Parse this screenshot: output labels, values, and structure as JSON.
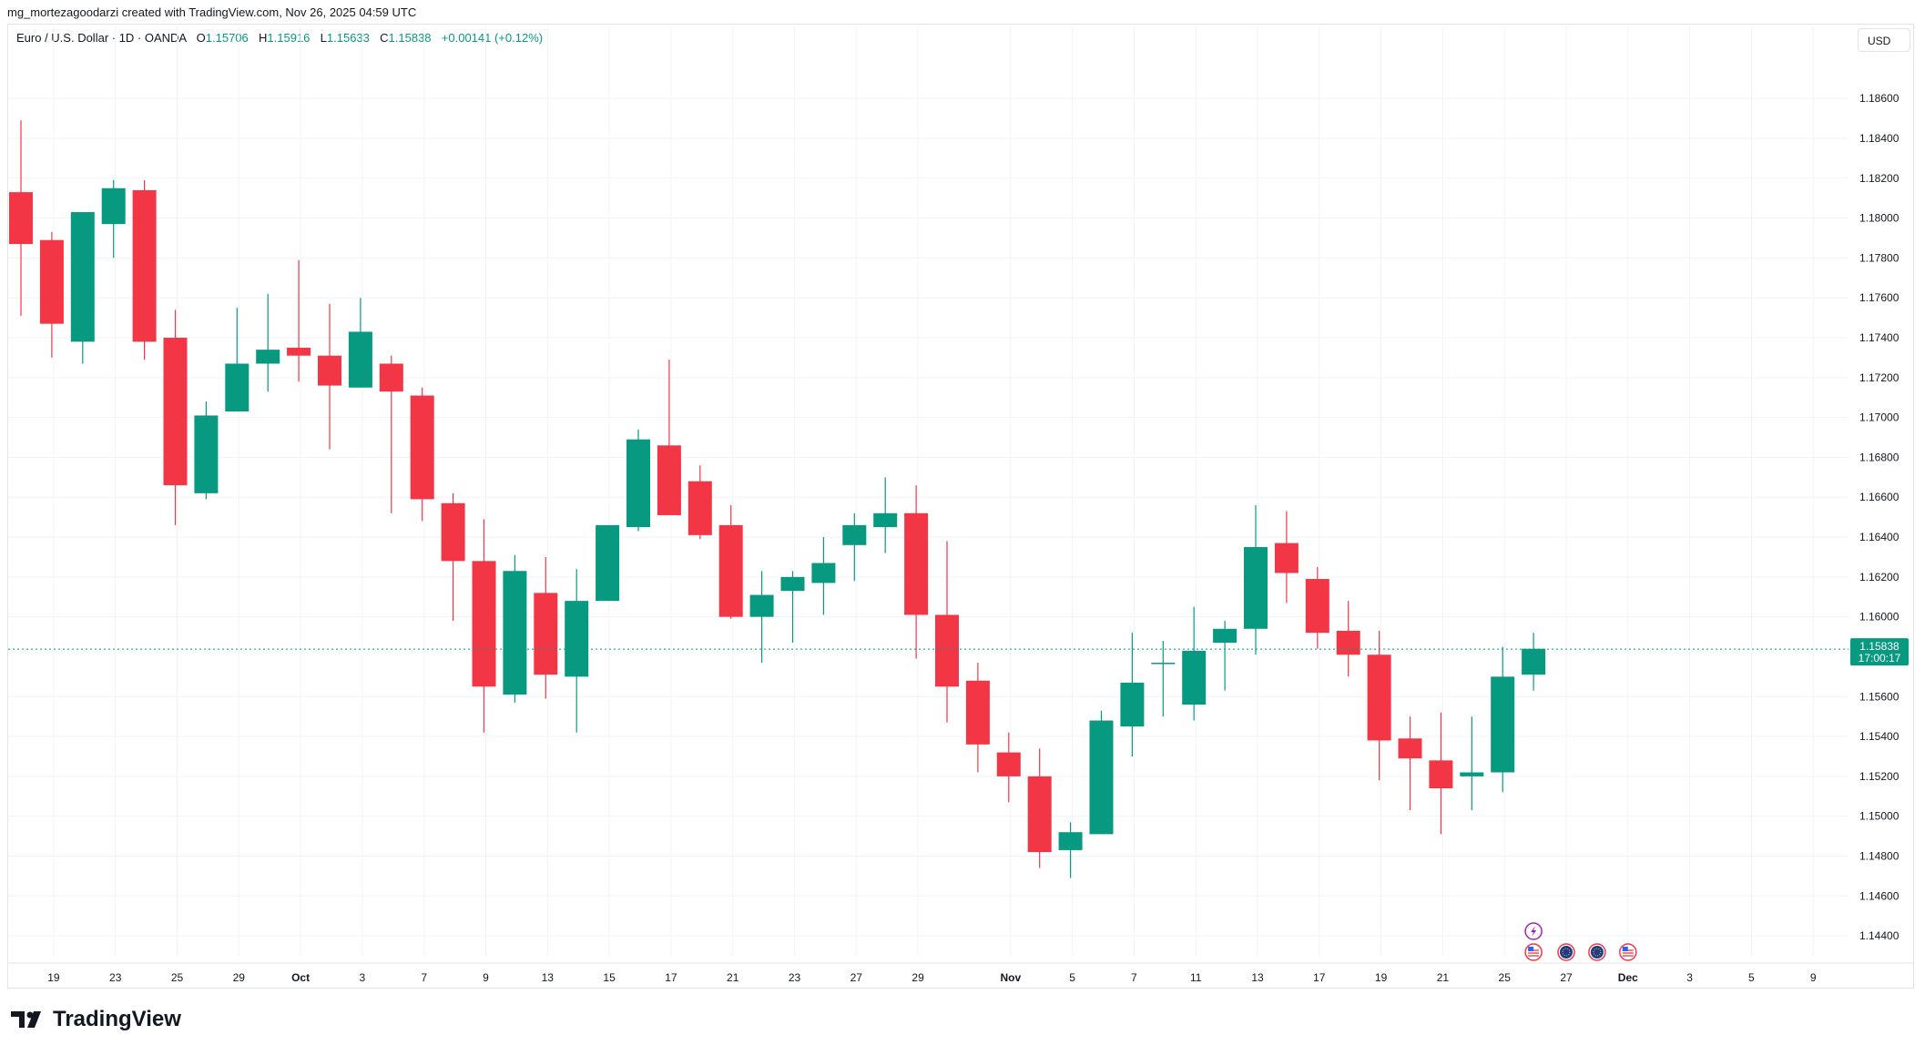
{
  "header": {
    "attribution": "mg_mortezagoodarzi created with TradingView.com, Nov 26, 2025 04:59 UTC"
  },
  "legend": {
    "symbol": "Euro / U.S. Dollar · 1D · OANDA",
    "open_label": "O",
    "open": "1.15706",
    "high_label": "H",
    "high": "1.15916",
    "low_label": "L",
    "low": "1.15633",
    "close_label": "C",
    "close": "1.15838",
    "change": "+0.00141 (+0.12%)"
  },
  "price_axis": {
    "currency": "USD",
    "last_price": "1.15838",
    "countdown": "17:00:17"
  },
  "footer": {
    "brand": "TradingView"
  },
  "colors": {
    "up": "#089981",
    "down": "#f23645",
    "grid": "#f0f3fa",
    "last_line": "#089981"
  },
  "events": [
    {
      "type": "earnings-lightning-icon",
      "date": "Nov 26"
    },
    {
      "type": "us-flag-icon",
      "date": "Nov 26"
    },
    {
      "type": "eu-flag-icon",
      "date": "Nov 27"
    },
    {
      "type": "eu-flag-icon",
      "date": "Nov 28"
    },
    {
      "type": "us-flag-icon",
      "date": "Nov 29"
    }
  ],
  "chart_data": {
    "type": "candlestick",
    "ylim": [
      1.143,
      1.1882
    ],
    "yticks": [
      "1.18600",
      "1.18400",
      "1.18200",
      "1.18000",
      "1.17800",
      "1.17600",
      "1.17400",
      "1.17200",
      "1.17000",
      "1.16800",
      "1.16600",
      "1.16400",
      "1.16200",
      "1.16000",
      "1.15600",
      "1.15400",
      "1.15200",
      "1.15000",
      "1.14800",
      "1.14600",
      "1.14400"
    ],
    "xticks": [
      {
        "label": "19",
        "slot": 1
      },
      {
        "label": "23",
        "slot": 3
      },
      {
        "label": "25",
        "slot": 5
      },
      {
        "label": "29",
        "slot": 7
      },
      {
        "label": "Oct",
        "slot": 9
      },
      {
        "label": "3",
        "slot": 11
      },
      {
        "label": "7",
        "slot": 13
      },
      {
        "label": "9",
        "slot": 15
      },
      {
        "label": "13",
        "slot": 17
      },
      {
        "label": "15",
        "slot": 19
      },
      {
        "label": "17",
        "slot": 21
      },
      {
        "label": "21",
        "slot": 23
      },
      {
        "label": "23",
        "slot": 25
      },
      {
        "label": "27",
        "slot": 27
      },
      {
        "label": "29",
        "slot": 29
      },
      {
        "label": "Nov",
        "slot": 32
      },
      {
        "label": "5",
        "slot": 34
      },
      {
        "label": "7",
        "slot": 36
      },
      {
        "label": "11",
        "slot": 38
      },
      {
        "label": "13",
        "slot": 40
      },
      {
        "label": "17",
        "slot": 42
      },
      {
        "label": "19",
        "slot": 44
      },
      {
        "label": "21",
        "slot": 46
      },
      {
        "label": "25",
        "slot": 48
      },
      {
        "label": "27",
        "slot": 50
      },
      {
        "label": "Dec",
        "slot": 52
      },
      {
        "label": "3",
        "slot": 54
      },
      {
        "label": "5",
        "slot": 56
      },
      {
        "label": "9",
        "slot": 58
      }
    ],
    "candles": [
      {
        "o": 1.1813,
        "h": 1.1849,
        "l": 1.1751,
        "c": 1.1787
      },
      {
        "o": 1.1789,
        "h": 1.1793,
        "l": 1.173,
        "c": 1.1747
      },
      {
        "o": 1.1738,
        "h": 1.1803,
        "l": 1.1727,
        "c": 1.1803
      },
      {
        "o": 1.1797,
        "h": 1.1819,
        "l": 1.178,
        "c": 1.1815
      },
      {
        "o": 1.1814,
        "h": 1.1819,
        "l": 1.1729,
        "c": 1.1738
      },
      {
        "o": 1.174,
        "h": 1.1754,
        "l": 1.1646,
        "c": 1.1666
      },
      {
        "o": 1.1662,
        "h": 1.1708,
        "l": 1.1659,
        "c": 1.1701
      },
      {
        "o": 1.1703,
        "h": 1.1755,
        "l": 1.1703,
        "c": 1.1727
      },
      {
        "o": 1.1727,
        "h": 1.1762,
        "l": 1.1713,
        "c": 1.1734
      },
      {
        "o": 1.1735,
        "h": 1.1779,
        "l": 1.1718,
        "c": 1.1731
      },
      {
        "o": 1.1731,
        "h": 1.1757,
        "l": 1.1684,
        "c": 1.1716
      },
      {
        "o": 1.1715,
        "h": 1.176,
        "l": 1.1715,
        "c": 1.1743
      },
      {
        "o": 1.1727,
        "h": 1.1731,
        "l": 1.1652,
        "c": 1.1713
      },
      {
        "o": 1.1711,
        "h": 1.1715,
        "l": 1.1648,
        "c": 1.1659
      },
      {
        "o": 1.1657,
        "h": 1.1662,
        "l": 1.1598,
        "c": 1.1628
      },
      {
        "o": 1.1628,
        "h": 1.1649,
        "l": 1.1542,
        "c": 1.1565
      },
      {
        "o": 1.1561,
        "h": 1.1631,
        "l": 1.1557,
        "c": 1.1623
      },
      {
        "o": 1.1612,
        "h": 1.163,
        "l": 1.1559,
        "c": 1.1571
      },
      {
        "o": 1.157,
        "h": 1.1624,
        "l": 1.1542,
        "c": 1.1608
      },
      {
        "o": 1.1608,
        "h": 1.1646,
        "l": 1.1608,
        "c": 1.1646
      },
      {
        "o": 1.1645,
        "h": 1.1694,
        "l": 1.1643,
        "c": 1.1689
      },
      {
        "o": 1.1686,
        "h": 1.1729,
        "l": 1.1651,
        "c": 1.1651
      },
      {
        "o": 1.1668,
        "h": 1.1676,
        "l": 1.1639,
        "c": 1.1641
      },
      {
        "o": 1.1646,
        "h": 1.1656,
        "l": 1.1599,
        "c": 1.16
      },
      {
        "o": 1.16,
        "h": 1.1623,
        "l": 1.1577,
        "c": 1.1611
      },
      {
        "o": 1.1613,
        "h": 1.1623,
        "l": 1.1587,
        "c": 1.162
      },
      {
        "o": 1.1617,
        "h": 1.164,
        "l": 1.1601,
        "c": 1.1627
      },
      {
        "o": 1.1636,
        "h": 1.1652,
        "l": 1.1618,
        "c": 1.1646
      },
      {
        "o": 1.1645,
        "h": 1.167,
        "l": 1.1632,
        "c": 1.1652
      },
      {
        "o": 1.1652,
        "h": 1.1666,
        "l": 1.1579,
        "c": 1.1601
      },
      {
        "o": 1.1601,
        "h": 1.1638,
        "l": 1.1547,
        "c": 1.1565
      },
      {
        "o": 1.1568,
        "h": 1.1577,
        "l": 1.1522,
        "c": 1.1536
      },
      {
        "o": 1.1532,
        "h": 1.1542,
        "l": 1.1507,
        "c": 1.152
      },
      {
        "o": 1.152,
        "h": 1.1534,
        "l": 1.1474,
        "c": 1.1482
      },
      {
        "o": 1.1483,
        "h": 1.1497,
        "l": 1.1469,
        "c": 1.1492
      },
      {
        "o": 1.1491,
        "h": 1.1553,
        "l": 1.1491,
        "c": 1.1548
      },
      {
        "o": 1.1545,
        "h": 1.1592,
        "l": 1.153,
        "c": 1.1567
      },
      {
        "o": 1.1577,
        "h": 1.1588,
        "l": 1.155,
        "c": 1.1577
      },
      {
        "o": 1.1556,
        "h": 1.1605,
        "l": 1.1548,
        "c": 1.1583
      },
      {
        "o": 1.1587,
        "h": 1.1598,
        "l": 1.1563,
        "c": 1.1594
      },
      {
        "o": 1.1594,
        "h": 1.1656,
        "l": 1.1581,
        "c": 1.1635
      },
      {
        "o": 1.1637,
        "h": 1.1653,
        "l": 1.1607,
        "c": 1.1622
      },
      {
        "o": 1.1619,
        "h": 1.1625,
        "l": 1.1584,
        "c": 1.1592
      },
      {
        "o": 1.1593,
        "h": 1.1608,
        "l": 1.157,
        "c": 1.1581
      },
      {
        "o": 1.1581,
        "h": 1.1593,
        "l": 1.1518,
        "c": 1.1538
      },
      {
        "o": 1.1539,
        "h": 1.155,
        "l": 1.1503,
        "c": 1.1529
      },
      {
        "o": 1.1528,
        "h": 1.1552,
        "l": 1.1491,
        "c": 1.1514
      },
      {
        "o": 1.152,
        "h": 1.155,
        "l": 1.1503,
        "c": 1.1522
      },
      {
        "o": 1.1522,
        "h": 1.1585,
        "l": 1.1512,
        "c": 1.157
      },
      {
        "o": 1.1571,
        "h": 1.1592,
        "l": 1.1563,
        "c": 1.1584
      }
    ]
  }
}
